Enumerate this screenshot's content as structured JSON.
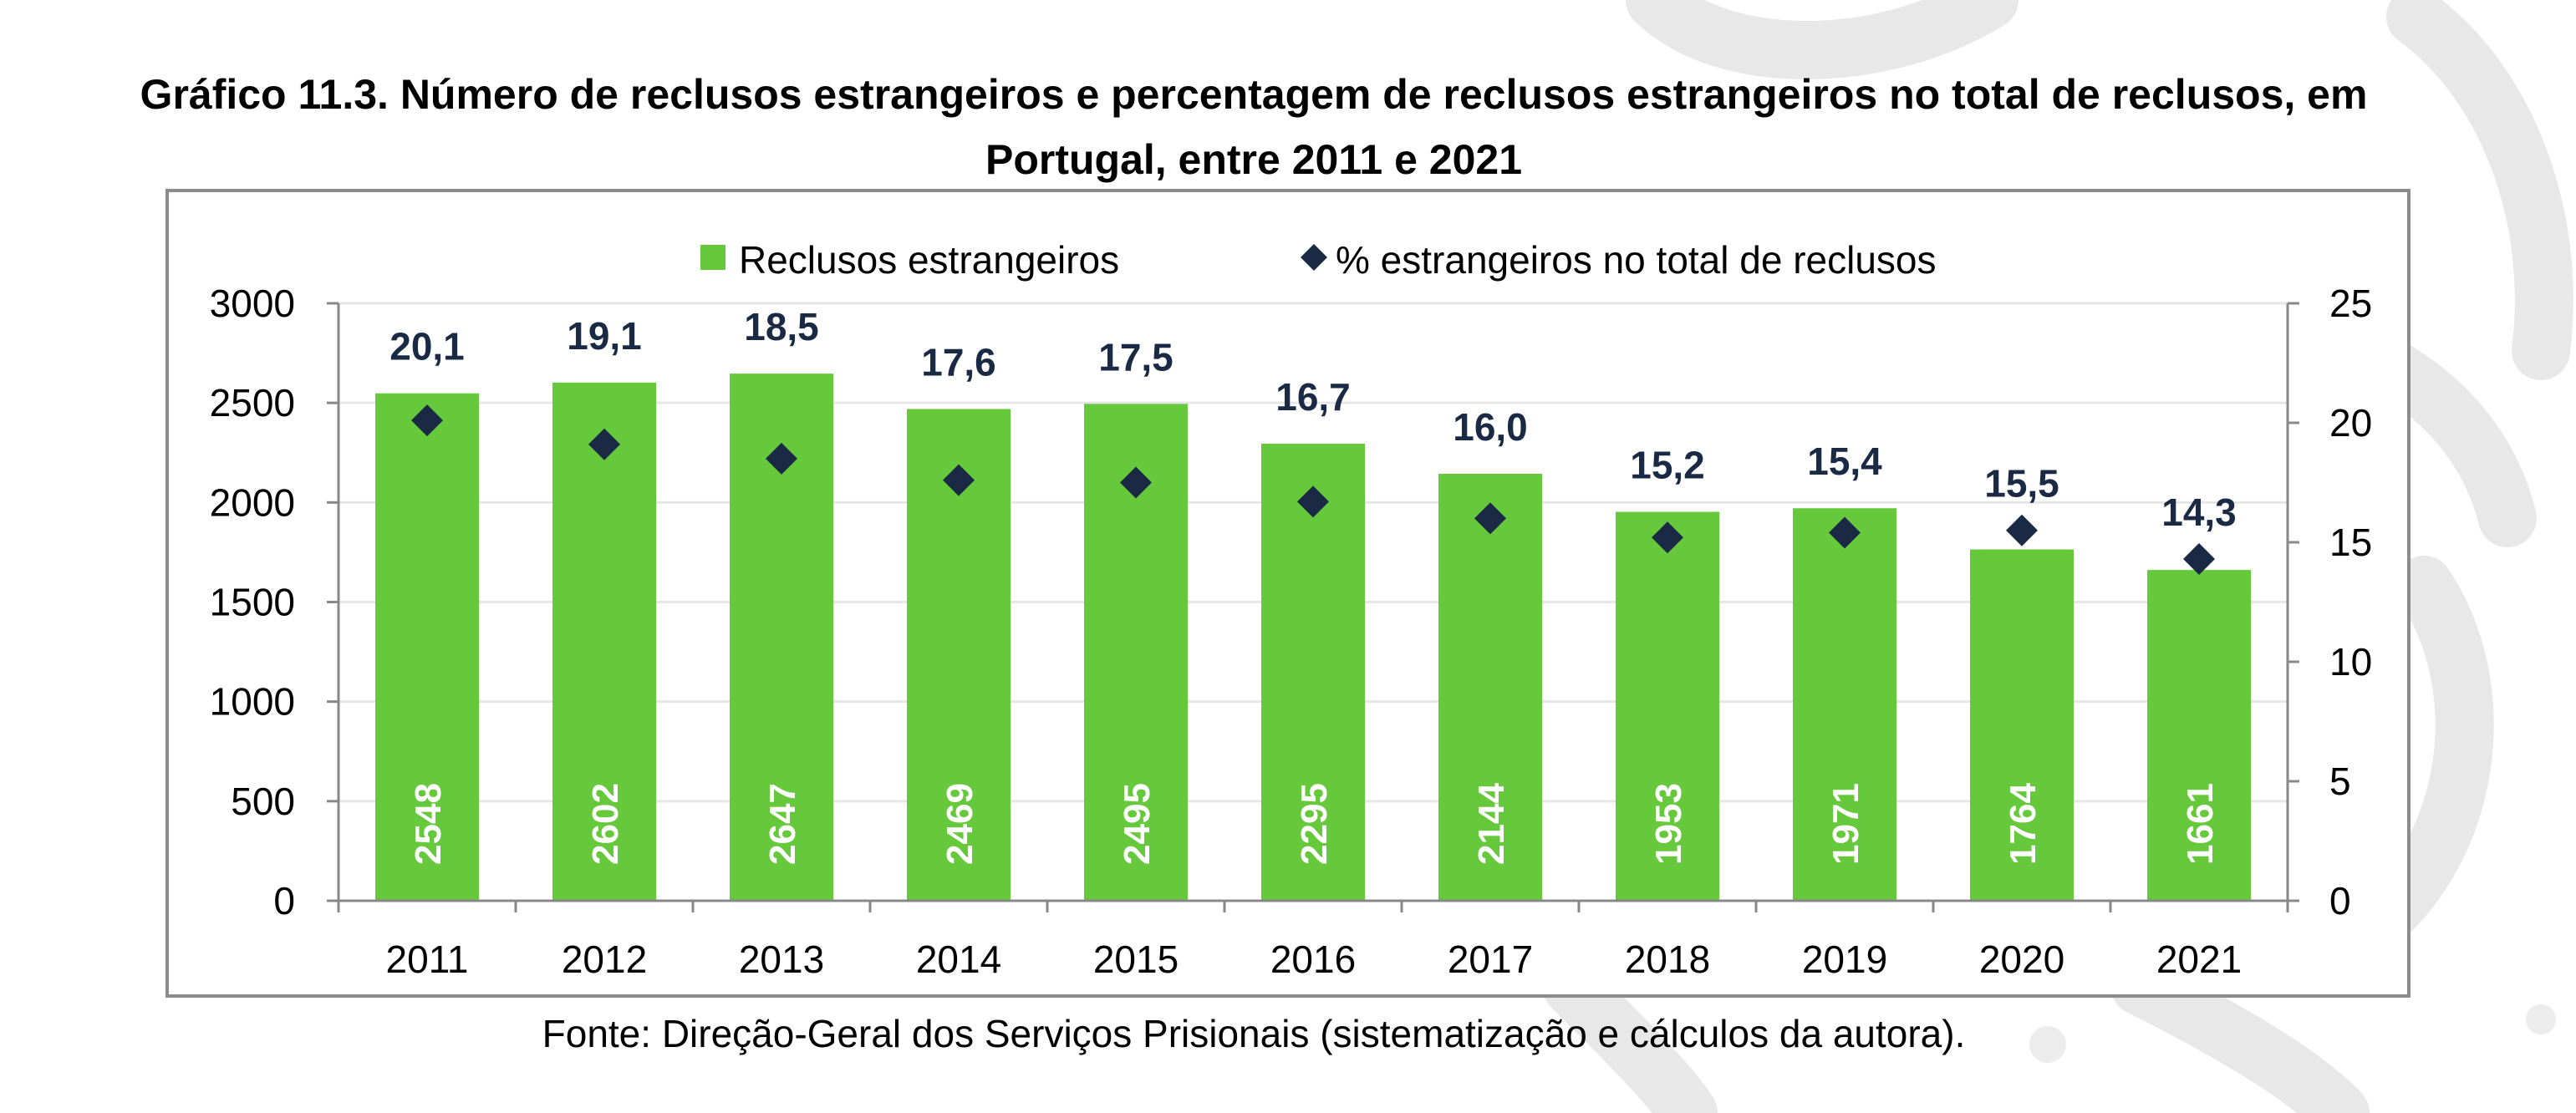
{
  "title": "Gráfico 11.3. Número de reclusos estrangeiros e percentagem de reclusos estrangeiros no total de reclusos, em Portugal, entre 2011 e 2021",
  "source": "Fonte: Direção-Geral dos Serviços Prisionais (sistematização e cálculos da autora).",
  "colors": {
    "bar": "#66c83b",
    "marker": "#1b2a44",
    "label": "#1b2a44",
    "bar_label": "#ffffff"
  },
  "chart_data": {
    "type": "bar",
    "categories": [
      "2011",
      "2012",
      "2013",
      "2014",
      "2015",
      "2016",
      "2017",
      "2018",
      "2019",
      "2020",
      "2021"
    ],
    "series": [
      {
        "name": "Reclusos estrangeiros",
        "type": "bar",
        "axis": "left",
        "values": [
          2548,
          2602,
          2647,
          2469,
          2495,
          2295,
          2144,
          1953,
          1971,
          1764,
          1661
        ]
      },
      {
        "name": "% estrangeiros no total de reclusos",
        "type": "scatter",
        "axis": "right",
        "values": [
          20.1,
          19.1,
          18.5,
          17.6,
          17.5,
          16.7,
          16.0,
          15.2,
          15.4,
          15.5,
          14.3
        ],
        "labels": [
          "20,1",
          "19,1",
          "18,5",
          "17,6",
          "17,5",
          "16,7",
          "16,0",
          "15,2",
          "15,4",
          "15,5",
          "14,3"
        ]
      }
    ],
    "ylim": [
      0,
      3000
    ],
    "y_ticks": [
      0,
      500,
      1000,
      1500,
      2000,
      2500,
      3000
    ],
    "y2lim": [
      0,
      25
    ],
    "y2_ticks": [
      0,
      5,
      10,
      15,
      20,
      25
    ],
    "legend": "top",
    "grid": true
  }
}
